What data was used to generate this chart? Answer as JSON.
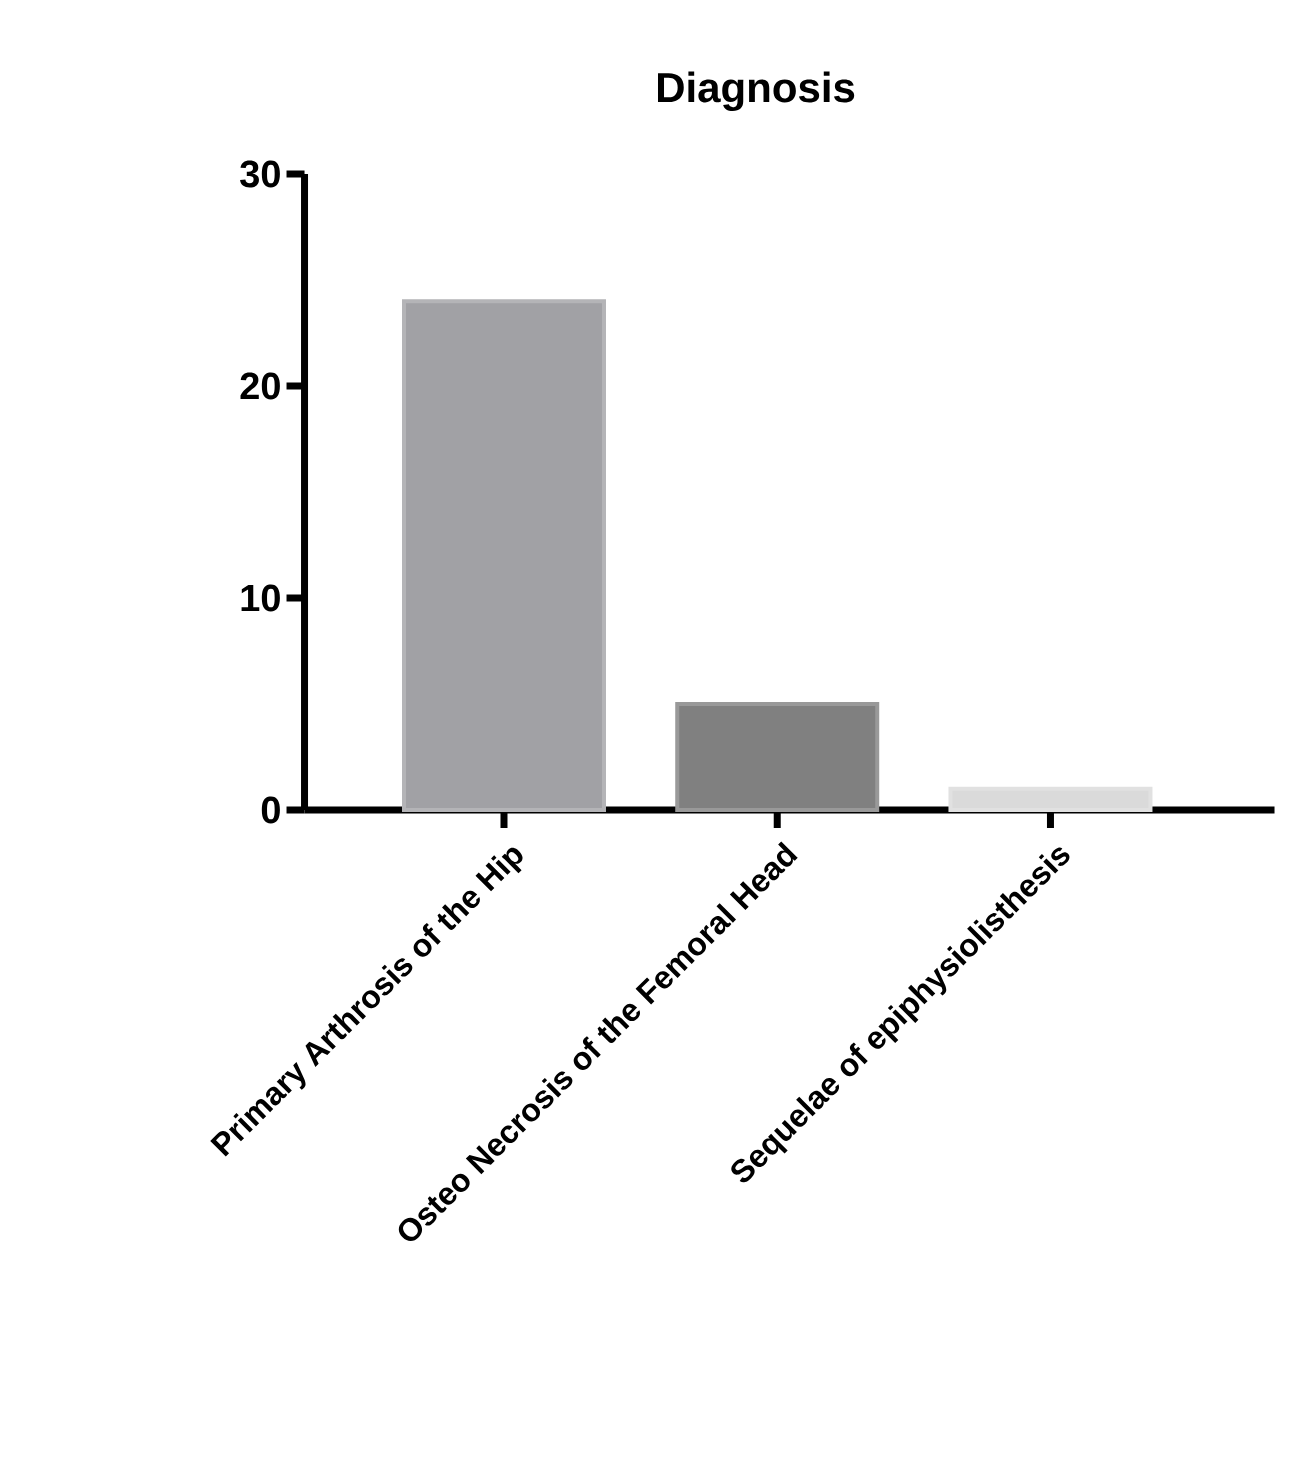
{
  "chart_data": {
    "type": "bar",
    "title": "Diagnosis",
    "categories": [
      "Primary Arthrosis of the Hip",
      "Osteo Necrosis of the Femoral Head",
      "Sequelae of epiphysiolisthesis"
    ],
    "values": [
      24,
      5,
      1
    ],
    "colors": [
      "#a1a1a5",
      "#808080",
      "#dadada"
    ],
    "ylim": [
      0,
      30
    ],
    "yticks": [
      0,
      10,
      20,
      30
    ],
    "grid": false
  }
}
